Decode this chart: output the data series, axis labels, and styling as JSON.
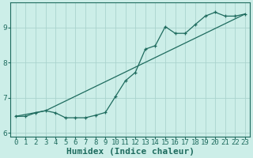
{
  "xlabel": "Humidex (Indice chaleur)",
  "ylabel": "",
  "background_color": "#cceee8",
  "grid_color": "#aad4ce",
  "line_color": "#1e6b5e",
  "xlim": [
    -0.5,
    23.5
  ],
  "ylim": [
    5.9,
    9.7
  ],
  "xticks": [
    0,
    1,
    2,
    3,
    4,
    5,
    6,
    7,
    8,
    9,
    10,
    11,
    12,
    13,
    14,
    15,
    16,
    17,
    18,
    19,
    20,
    21,
    22,
    23
  ],
  "yticks": [
    6,
    7,
    8,
    9
  ],
  "line1_x": [
    0,
    1,
    2,
    3,
    4,
    5,
    6,
    7,
    8,
    9,
    10,
    11,
    12,
    13,
    14,
    15,
    16,
    17,
    18,
    19,
    20,
    21,
    22,
    23
  ],
  "line1_y": [
    6.47,
    6.47,
    6.57,
    6.63,
    6.57,
    6.43,
    6.43,
    6.43,
    6.5,
    6.58,
    7.03,
    7.48,
    7.72,
    8.38,
    8.48,
    9.02,
    8.83,
    8.83,
    9.08,
    9.32,
    9.43,
    9.32,
    9.32,
    9.38
  ],
  "line2_x": [
    0,
    3,
    23
  ],
  "line2_y": [
    6.47,
    6.63,
    9.38
  ],
  "marker": "+",
  "markersize": 3.5,
  "linewidth": 0.9,
  "xlabel_fontsize": 8,
  "tick_fontsize": 6.5,
  "figwidth": 3.2,
  "figheight": 2.0,
  "dpi": 100
}
